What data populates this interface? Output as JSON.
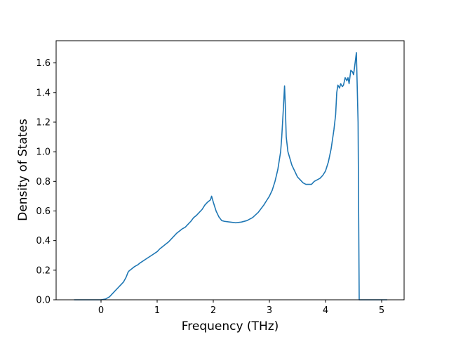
{
  "chart_data": {
    "type": "line",
    "title": "",
    "xlabel": "Frequency (THz)",
    "ylabel": "Density of States",
    "xlim": [
      -0.8,
      5.4
    ],
    "ylim": [
      0.0,
      1.75
    ],
    "xticks": [
      0,
      1,
      2,
      3,
      4,
      5
    ],
    "xtick_labels": [
      "0",
      "1",
      "2",
      "3",
      "4",
      "5"
    ],
    "yticks": [
      0.0,
      0.2,
      0.4,
      0.6,
      0.8,
      1.0,
      1.2,
      1.4,
      1.6
    ],
    "ytick_labels": [
      "0.0",
      "0.2",
      "0.4",
      "0.6",
      "0.8",
      "1.0",
      "1.2",
      "1.4",
      "1.6"
    ],
    "grid": false,
    "line_color": "#1f77b4",
    "series": [
      {
        "x": [
          -0.48,
          -0.2,
          0.0,
          0.08,
          0.15,
          0.2,
          0.25,
          0.3,
          0.35,
          0.4,
          0.45,
          0.48,
          0.5,
          0.55,
          0.6,
          0.65,
          0.7,
          0.8,
          0.9,
          1.0,
          1.05,
          1.1,
          1.15,
          1.2,
          1.25,
          1.3,
          1.35,
          1.4,
          1.45,
          1.5,
          1.55,
          1.6,
          1.65,
          1.7,
          1.75,
          1.8,
          1.85,
          1.9,
          1.95,
          1.97,
          2.0,
          2.05,
          2.1,
          2.15,
          2.2,
          2.3,
          2.4,
          2.5,
          2.6,
          2.7,
          2.8,
          2.9,
          3.0,
          3.05,
          3.1,
          3.15,
          3.2,
          3.22,
          3.25,
          3.27,
          3.28,
          3.3,
          3.33,
          3.4,
          3.45,
          3.5,
          3.55,
          3.6,
          3.65,
          3.7,
          3.75,
          3.8,
          3.85,
          3.9,
          3.95,
          4.0,
          4.05,
          4.1,
          4.15,
          4.18,
          4.2,
          4.22,
          4.25,
          4.27,
          4.3,
          4.32,
          4.35,
          4.38,
          4.4,
          4.42,
          4.45,
          4.48,
          4.5,
          4.52,
          4.55,
          4.58,
          4.6,
          4.62,
          4.65,
          4.67,
          5.1
        ],
        "y": [
          0.0,
          0.0,
          0.0,
          0.005,
          0.02,
          0.04,
          0.06,
          0.08,
          0.1,
          0.12,
          0.155,
          0.185,
          0.195,
          0.21,
          0.225,
          0.235,
          0.25,
          0.275,
          0.3,
          0.325,
          0.345,
          0.36,
          0.375,
          0.39,
          0.41,
          0.43,
          0.45,
          0.465,
          0.48,
          0.49,
          0.51,
          0.53,
          0.555,
          0.57,
          0.59,
          0.61,
          0.64,
          0.66,
          0.675,
          0.7,
          0.66,
          0.6,
          0.56,
          0.535,
          0.53,
          0.525,
          0.52,
          0.525,
          0.535,
          0.555,
          0.59,
          0.64,
          0.7,
          0.74,
          0.8,
          0.88,
          1.0,
          1.1,
          1.3,
          1.445,
          1.35,
          1.1,
          1.0,
          0.91,
          0.87,
          0.83,
          0.81,
          0.79,
          0.78,
          0.78,
          0.78,
          0.8,
          0.81,
          0.82,
          0.84,
          0.87,
          0.93,
          1.02,
          1.15,
          1.25,
          1.4,
          1.45,
          1.43,
          1.46,
          1.44,
          1.45,
          1.5,
          1.48,
          1.5,
          1.46,
          1.55,
          1.54,
          1.52,
          1.58,
          1.67,
          1.2,
          0.0,
          0.0,
          0.0,
          0.0,
          0.0
        ]
      }
    ]
  }
}
